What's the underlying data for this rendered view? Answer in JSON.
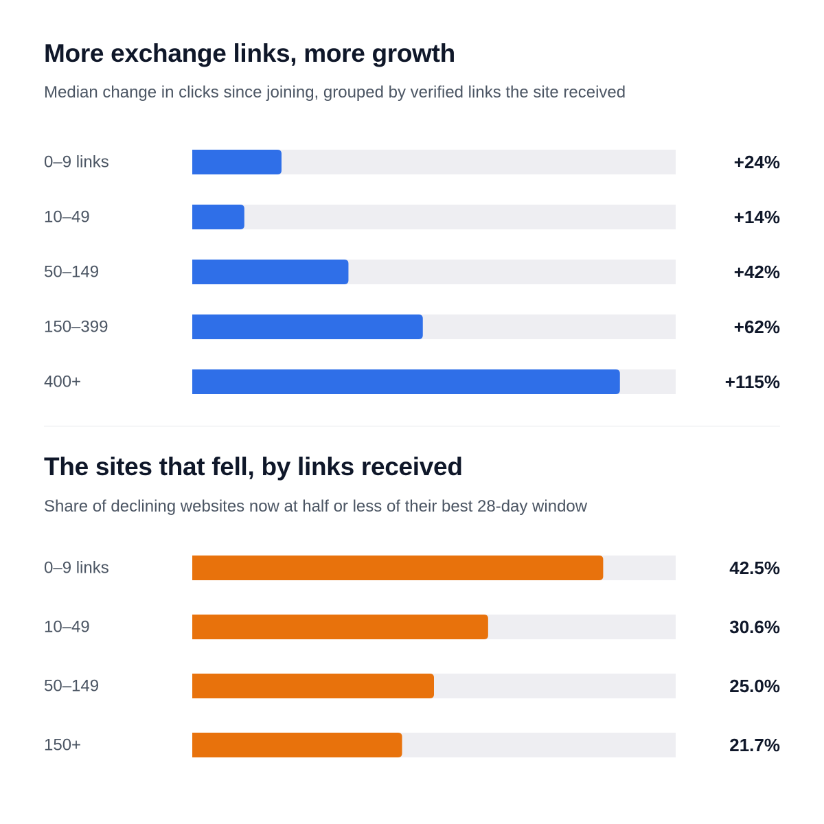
{
  "chart_data": [
    {
      "type": "bar",
      "orientation": "horizontal",
      "title": "More exchange links, more growth",
      "subtitle": "Median change in clicks since joining, grouped by verified links the site received",
      "categories": [
        "0–9 links",
        "10–49",
        "50–149",
        "150–399",
        "400+"
      ],
      "values": [
        24,
        14,
        42,
        62,
        115
      ],
      "value_labels": [
        "+24%",
        "+14%",
        "+42%",
        "+62%",
        "+115%"
      ],
      "xlim": [
        0,
        130
      ],
      "bar_color": "#2f6fe8",
      "track_color": "#eeeef2",
      "grid": false
    },
    {
      "type": "bar",
      "orientation": "horizontal",
      "title": "The sites that fell, by links received",
      "subtitle": "Share of declining websites now at half or less of their best 28-day window",
      "categories": [
        "0–9 links",
        "10–49",
        "50–149",
        "150+"
      ],
      "values": [
        42.5,
        30.6,
        25.0,
        21.7
      ],
      "value_labels": [
        "42.5%",
        "30.6%",
        "25.0%",
        "21.7%"
      ],
      "xlim": [
        0,
        50
      ],
      "bar_color": "#e8720c",
      "track_color": "#eeeef2",
      "grid": false
    }
  ]
}
